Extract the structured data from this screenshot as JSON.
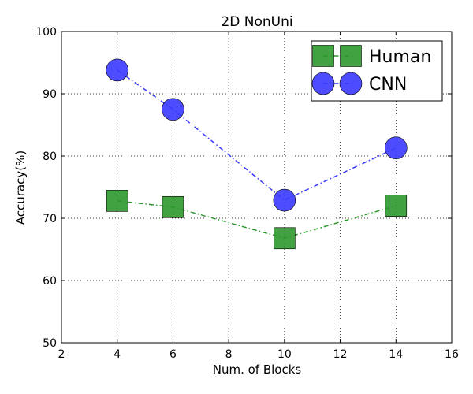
{
  "chart_data": {
    "type": "scatter",
    "title": "2D NonUni",
    "xlabel": "Num. of Blocks",
    "ylabel": "Accuracy(%)",
    "xlim": [
      2,
      16
    ],
    "ylim": [
      50,
      100
    ],
    "xticks": [
      2,
      4,
      6,
      8,
      10,
      12,
      14,
      16
    ],
    "yticks": [
      50,
      60,
      70,
      80,
      90,
      100
    ],
    "x": [
      4,
      6,
      10,
      14
    ],
    "grid": true,
    "legend_position": "top-right",
    "series": [
      {
        "name": "Human",
        "marker": "square",
        "line_style": "dash-dot",
        "color": "#2b982b",
        "values": [
          72.8,
          71.8,
          66.8,
          72.0
        ]
      },
      {
        "name": "CNN",
        "marker": "circle",
        "line_style": "dash-dot",
        "color": "#3a3aff",
        "values": [
          93.8,
          87.5,
          72.9,
          81.3
        ]
      }
    ]
  }
}
